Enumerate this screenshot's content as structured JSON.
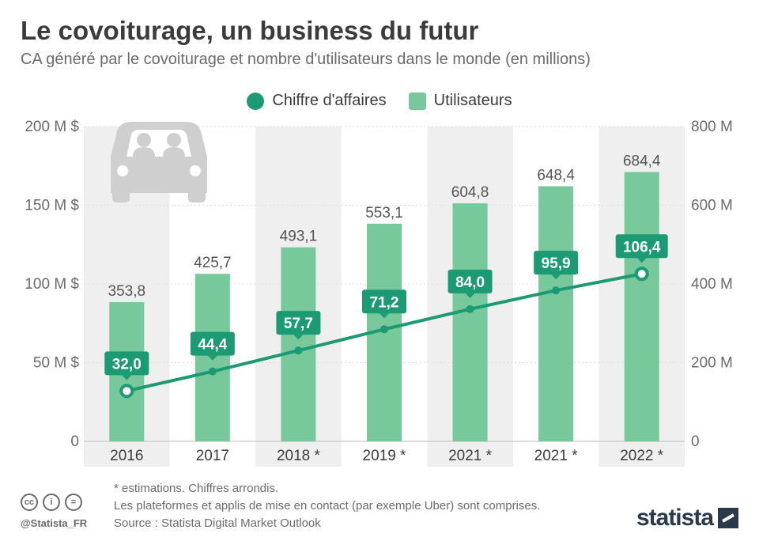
{
  "header": {
    "title": "Le covoiturage, un business du futur",
    "subtitle": "CA généré par le covoiturage et nombre d'utilisateurs dans le monde (en millions)"
  },
  "legend": {
    "line_label": "Chiffre d'affaires",
    "bar_label": "Utilisateurs"
  },
  "colors": {
    "line": "#1b9a73",
    "bar": "#77c89a",
    "band": "#efefef",
    "text": "#3b3b3b",
    "car_icon": "#cfcfcf"
  },
  "decoration": {
    "icon": "car-with-passengers-icon"
  },
  "chart_data": {
    "type": "bar",
    "categories": [
      "2016",
      "2017",
      "2018 *",
      "2019 *",
      "2021 *",
      "2021 *",
      "2022 *"
    ],
    "series": [
      {
        "name": "Utilisateurs",
        "type": "bar",
        "axis": "right",
        "values": [
          353.8,
          425.7,
          493.1,
          553.1,
          604.8,
          648.4,
          684.4
        ],
        "labels": [
          "353,8",
          "425,7",
          "493,1",
          "553,1",
          "604,8",
          "648,4",
          "684,4"
        ]
      },
      {
        "name": "Chiffre d'affaires",
        "type": "line",
        "axis": "left",
        "values": [
          32.0,
          44.4,
          57.7,
          71.2,
          84.0,
          95.9,
          106.4
        ],
        "labels": [
          "32,0",
          "44,4",
          "57,7",
          "71,2",
          "84,0",
          "95,9",
          "106,4"
        ]
      }
    ],
    "y_left": {
      "range": [
        0,
        200
      ],
      "ticks": [
        0,
        50,
        100,
        150,
        200
      ],
      "tick_labels": [
        "0",
        "50 M $",
        "100 M $",
        "150 M $",
        "200 M $"
      ]
    },
    "y_right": {
      "range": [
        0,
        800
      ],
      "ticks": [
        0,
        200,
        400,
        600,
        800
      ],
      "tick_labels": [
        "0",
        "200 M",
        "400 M",
        "600 M",
        "800 M"
      ]
    },
    "grid": true,
    "legend_position": "top-center"
  },
  "footer": {
    "notes": [
      "* estimations. Chiffres arrondis.",
      "Les plateformes et applis de mise en contact (par exemple Uber) sont comprises.",
      "Source : Statista Digital Market Outlook"
    ],
    "handle": "@Statista_FR",
    "brand": "statista",
    "license_icons": [
      "cc-icon",
      "attribution-icon",
      "no-derivatives-icon"
    ],
    "license_glyphs": [
      "cc",
      "i",
      "="
    ]
  }
}
